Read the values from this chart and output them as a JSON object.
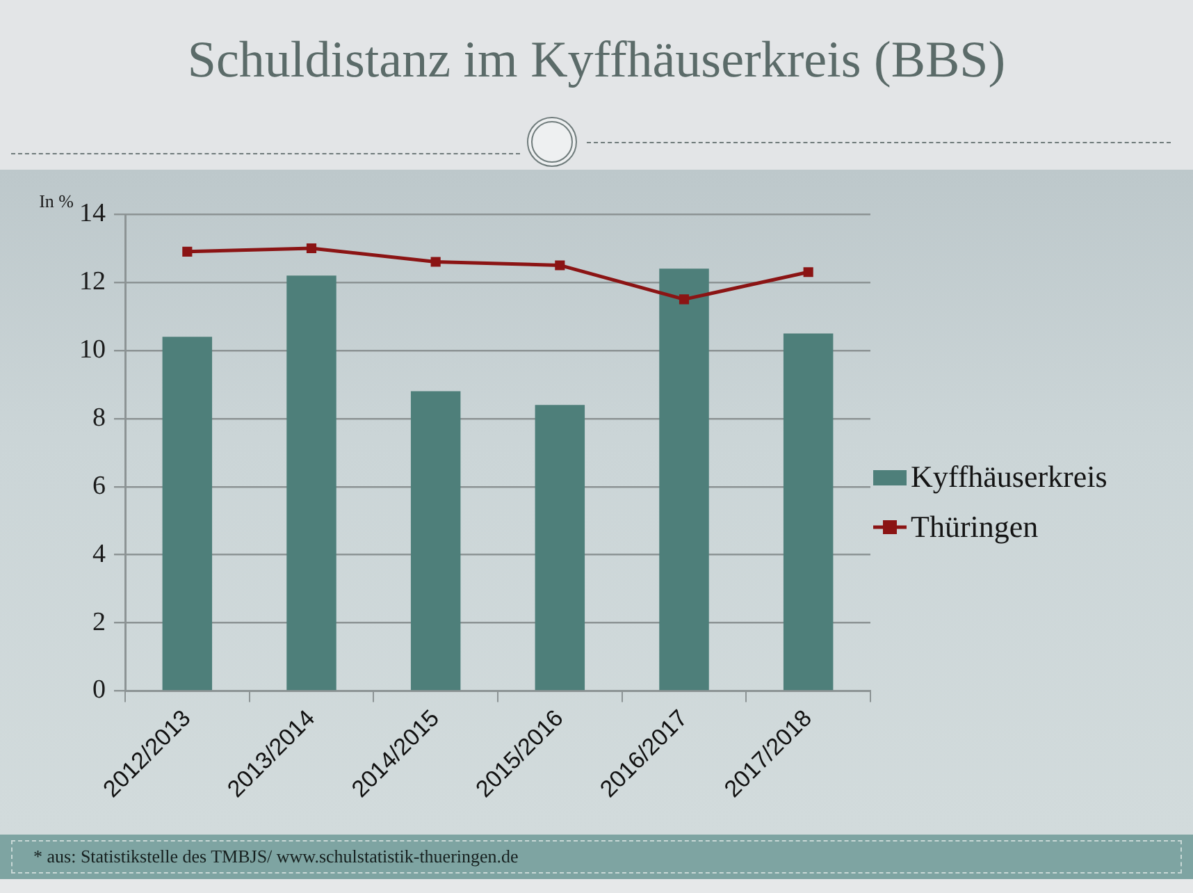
{
  "chart_data": {
    "type": "bar",
    "title": "Schuldistanz im Kyffhäuserkreis (BBS)",
    "ylabel": "In %",
    "categories": [
      "2012/2013",
      "2013/2014",
      "2014/2015",
      "2015/2016",
      "2016/2017",
      "2017/2018"
    ],
    "series": [
      {
        "name": "Kyffhäuserkreis",
        "color": "#4e7f7a",
        "values": [
          10.4,
          12.2,
          8.8,
          8.4,
          12.4,
          10.5
        ]
      },
      {
        "name": "Thüringen",
        "type": "line",
        "color": "#8b1414",
        "values": [
          12.9,
          13.0,
          12.6,
          12.5,
          11.5,
          12.3
        ]
      }
    ],
    "ylim": [
      0,
      14
    ],
    "yticks": [
      0,
      2,
      4,
      6,
      8,
      10,
      12,
      14
    ],
    "grid": "y",
    "legend": "right",
    "marker": "square",
    "annotations": [
      "* aus: Statistikstelle des TMBJS/ www.schulstatistik-thueringen.de"
    ]
  }
}
